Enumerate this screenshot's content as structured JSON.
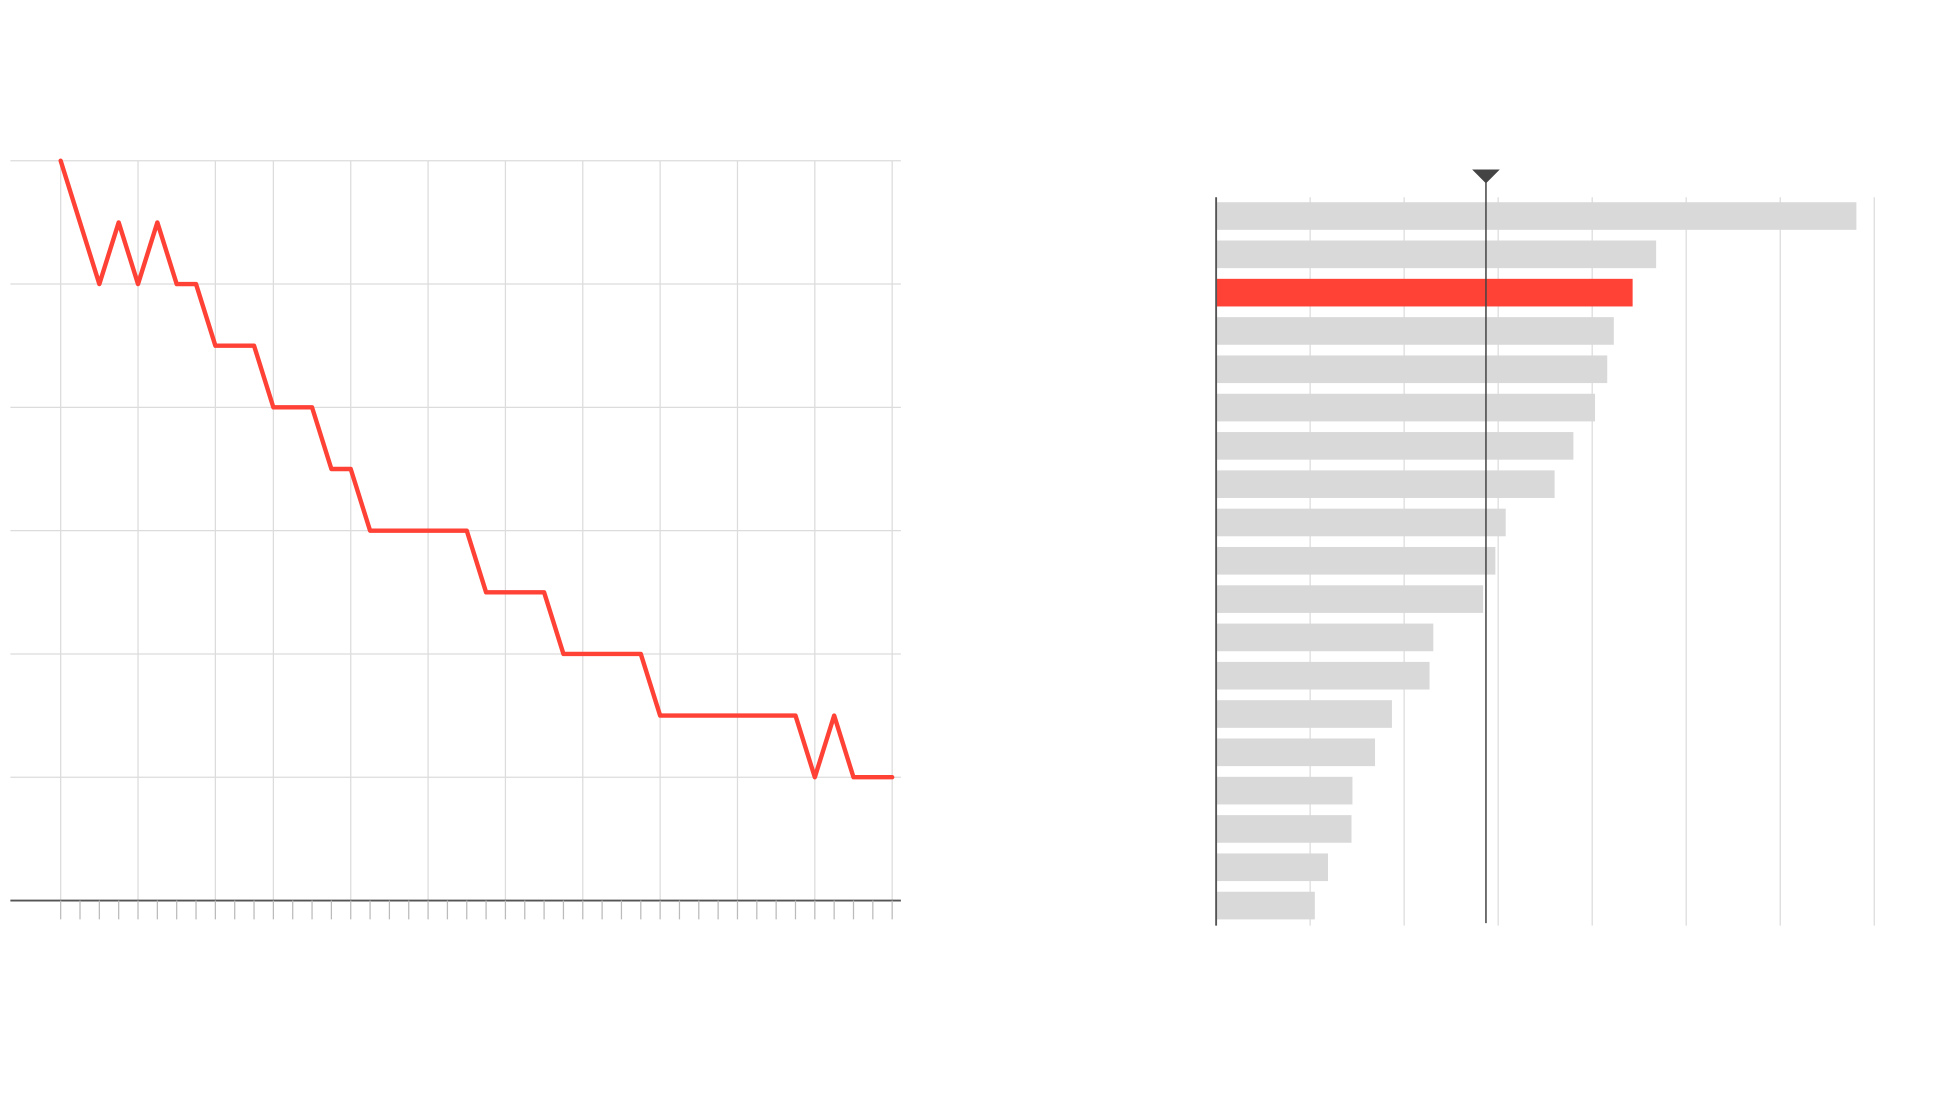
{
  "chart_data": [
    {
      "type": "line",
      "x": [
        0,
        1,
        2,
        3,
        4,
        5,
        6,
        7,
        8,
        9,
        10,
        11,
        12,
        13,
        14,
        15,
        16,
        17,
        18,
        19,
        20,
        21,
        22,
        23,
        24,
        25,
        26,
        27,
        28,
        29,
        30,
        31,
        32,
        33,
        34,
        35,
        36,
        37,
        38,
        39,
        40,
        41,
        42,
        43
      ],
      "series": [
        {
          "color": "#ff4136",
          "values": [
            6,
            5.5,
            5,
            5.5,
            5,
            5.5,
            5,
            5,
            4.5,
            4.5,
            4.5,
            4,
            4,
            4,
            3.5,
            3.5,
            3,
            3,
            3,
            3,
            3,
            3,
            2.5,
            2.5,
            2.5,
            2.5,
            2,
            2,
            2,
            2,
            2,
            1.5,
            1.5,
            1.5,
            1.5,
            1.5,
            1.5,
            1.5,
            1.5,
            1,
            1.5,
            1,
            1,
            1
          ]
        }
      ],
      "xlim": [
        -2.6,
        43.45
      ],
      "ylim": [
        0,
        6
      ],
      "xticks": [
        0,
        1,
        2,
        3,
        4,
        5,
        6,
        7,
        8,
        9,
        10,
        11,
        12,
        13,
        14,
        15,
        16,
        17,
        18,
        19,
        20,
        21,
        22,
        23,
        24,
        25,
        26,
        27,
        28,
        29,
        30,
        31,
        32,
        33,
        34,
        35,
        36,
        37,
        38,
        39,
        40,
        41,
        42,
        43
      ],
      "xgrid": [
        0,
        4,
        8,
        11,
        15,
        19,
        23,
        27,
        31,
        35,
        39,
        43
      ],
      "yticks": [
        0,
        1,
        2,
        3,
        4,
        5,
        6
      ],
      "grid": true
    },
    {
      "type": "hbar",
      "values": [
        6.81,
        4.68,
        4.43,
        4.23,
        4.16,
        4.03,
        3.8,
        3.6,
        3.08,
        2.97,
        2.84,
        2.31,
        2.27,
        1.87,
        1.69,
        1.45,
        1.44,
        1.19,
        1.05
      ],
      "colors": [
        "#d9d9d9",
        "#d9d9d9",
        "#ff4136",
        "#d9d9d9",
        "#d9d9d9",
        "#d9d9d9",
        "#d9d9d9",
        "#d9d9d9",
        "#d9d9d9",
        "#d9d9d9",
        "#d9d9d9",
        "#d9d9d9",
        "#d9d9d9",
        "#d9d9d9",
        "#d9d9d9",
        "#d9d9d9",
        "#d9d9d9",
        "#d9d9d9",
        "#d9d9d9"
      ],
      "xlim": [
        0,
        7
      ],
      "xticks": [
        0,
        1,
        2,
        3,
        4,
        5,
        6,
        7
      ],
      "grid": true,
      "marker": 2.87
    }
  ]
}
